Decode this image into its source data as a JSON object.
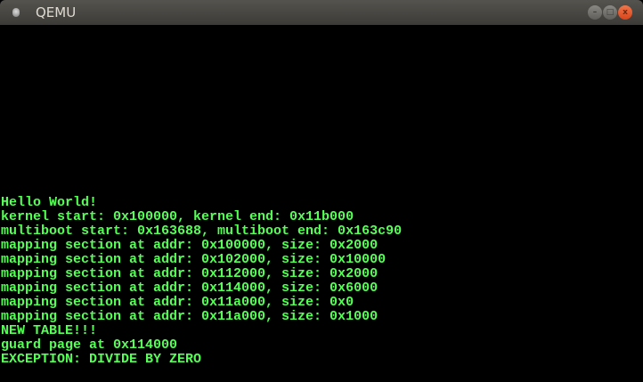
{
  "window": {
    "title": "QEMU",
    "buttons": {
      "minimize": "–",
      "maximize": "□",
      "close": "x"
    }
  },
  "console": {
    "text_color": "#55ff55",
    "background": "#000000",
    "lines": [
      "Hello World!",
      "kernel start: 0x100000, kernel end: 0x11b000",
      "multiboot start: 0x163688, multiboot end: 0x163c90",
      "mapping section at addr: 0x100000, size: 0x2000",
      "mapping section at addr: 0x102000, size: 0x10000",
      "mapping section at addr: 0x112000, size: 0x2000",
      "mapping section at addr: 0x114000, size: 0x6000",
      "mapping section at addr: 0x11a000, size: 0x0",
      "mapping section at addr: 0x11a000, size: 0x1000",
      "NEW TABLE!!!",
      "guard page at 0x114000",
      "EXCEPTION: DIVIDE BY ZERO"
    ]
  }
}
